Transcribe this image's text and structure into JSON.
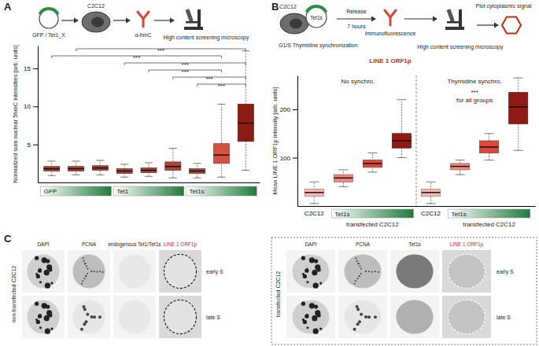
{
  "chart_data": [
    {
      "type": "box",
      "y_label": "Normalized sum nuclear 5hmC intensities [arb. units]",
      "categories": [
        null,
        null,
        null,
        null,
        null,
        null,
        null,
        null,
        null
      ],
      "q1": [
        1.5,
        1.5,
        1.6,
        1.2,
        1.3,
        1.6,
        1.2,
        2.5,
        5.4
      ],
      "median": [
        1.8,
        1.8,
        1.9,
        1.5,
        1.6,
        2.1,
        1.5,
        3.6,
        7.8
      ],
      "q3": [
        2.1,
        2.1,
        2.2,
        1.8,
        1.9,
        2.7,
        1.8,
        5.1,
        10.3
      ],
      "whisker_low": [
        0.9,
        1.0,
        1.0,
        0.7,
        0.8,
        0.6,
        0.6,
        0.7,
        1.6
      ],
      "whisker_high": [
        2.8,
        2.8,
        2.9,
        2.4,
        2.6,
        4.5,
        2.5,
        10.3,
        17.3
      ],
      "colors": [
        "#a0453c",
        "#a0453c",
        "#a0453c",
        "#a0453c",
        "#a0453c",
        "#a8463c",
        "#a0453c",
        "#d4503f",
        "#8e1b12"
      ],
      "ylim": [
        0,
        18
      ],
      "yticks": [
        5,
        10,
        15
      ],
      "groups": [
        {
          "label": "GFP",
          "members": [
            0,
            1,
            2
          ]
        },
        {
          "label": "Tet1",
          "members": [
            3,
            4,
            5
          ]
        },
        {
          "label": "Tet1s",
          "members": [
            6,
            7,
            8
          ]
        }
      ],
      "annotations": [
        {
          "from": 1,
          "to": 8,
          "label": "***"
        },
        {
          "from": 0,
          "to": 7,
          "label": "***"
        },
        {
          "from": 3,
          "to": 8,
          "label": "***"
        },
        {
          "from": 4,
          "to": 7,
          "label": "***"
        },
        {
          "from": 5,
          "to": 8,
          "label": "***"
        },
        {
          "from": 6,
          "to": 8,
          "label": "***"
        }
      ]
    },
    {
      "type": "box",
      "y_label": "Mean LINE 1 ORF1p intensity [arb. units]",
      "categories": [
        "C2C12",
        null,
        null,
        null,
        "C2C12",
        null,
        null,
        null
      ],
      "q1": [
        20,
        50,
        80,
        120,
        20,
        75,
        110,
        170
      ],
      "median": [
        28,
        58,
        88,
        135,
        28,
        82,
        122,
        205
      ],
      "q3": [
        35,
        65,
        95,
        150,
        35,
        88,
        135,
        235
      ],
      "whisker_low": [
        5,
        40,
        70,
        100,
        5,
        65,
        95,
        115
      ],
      "whisker_high": [
        50,
        75,
        110,
        220,
        50,
        95,
        150,
        265
      ],
      "colors": [
        "#f2b8b8",
        "#eb8a80",
        "#d94a3c",
        "#8e1b12",
        "#f2b8b8",
        "#eb8a80",
        "#d94a3c",
        "#8e1b12"
      ],
      "ylim": [
        0,
        270
      ],
      "yticks": [
        100,
        200
      ],
      "panels": [
        {
          "title": "No synchro.",
          "members": [
            0,
            1,
            2,
            3
          ]
        },
        {
          "title": "Thymidine synchro.",
          "members": [
            4,
            5,
            6,
            7
          ]
        }
      ],
      "groups": [
        {
          "label": "Tet1s",
          "sublabel": "transfected C2C12",
          "members": [
            1,
            2,
            3
          ]
        },
        {
          "label": "Tet1s",
          "sublabel": "transfected C2C12",
          "members": [
            5,
            6,
            7
          ]
        }
      ],
      "annotations": [
        "***",
        "for all groups"
      ]
    }
  ],
  "figure": {
    "panel_labels": [
      "A",
      "B",
      "C"
    ],
    "schematic_a": {
      "plasmid": "GFP / Tet1_X",
      "cell": "C2C12",
      "antibody": "α-hmC",
      "step": "High content screening microscopy"
    },
    "schematic_b": {
      "cell": "C2C12",
      "plasmid": "Tet1s",
      "sync": "G1/S Thymidine synchronization",
      "arrow_top": "Release",
      "arrow_bottom": "7 hours",
      "antibody": "immunofluorescence",
      "target": "LINE 1 ORF1p",
      "step": "High content screening microscopy",
      "plot": "Plot cytoplasmic signal"
    },
    "panel_c": {
      "left": {
        "label": "non-transfected C2C12",
        "columns": [
          "DAPI",
          "PCNA",
          "endogenous Tet1/Tet1s",
          "LINE 1 ORF1p"
        ],
        "rows": [
          "early S",
          "late S"
        ]
      },
      "right": {
        "label": "transfected C2C12",
        "columns": [
          "DAPI",
          "PCNA",
          "Tet1s",
          "LINE 1 ORF1p"
        ],
        "rows": [
          "early S",
          "late S"
        ]
      }
    }
  }
}
